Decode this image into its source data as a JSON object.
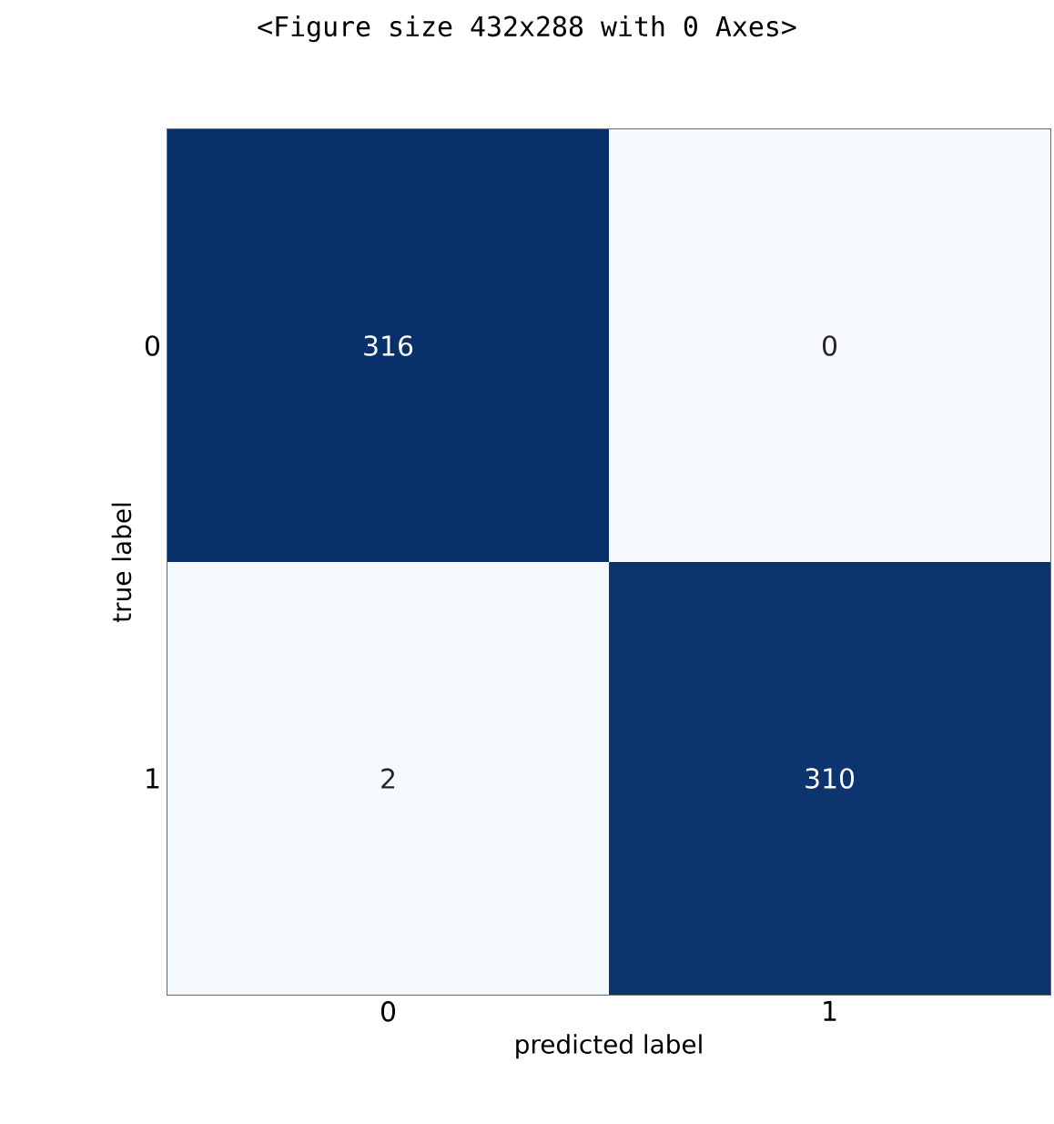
{
  "chart_data": {
    "type": "heatmap",
    "annotations": [
      "<Figure size 432x288 with 0 Axes>"
    ],
    "xlabel": "predicted label",
    "ylabel": "true label",
    "data_labels": true,
    "categories": [
      "0",
      "1"
    ],
    "y_categories": [
      "0",
      "1"
    ],
    "cells": [
      [
        316,
        0
      ],
      [
        2,
        310
      ]
    ]
  }
}
